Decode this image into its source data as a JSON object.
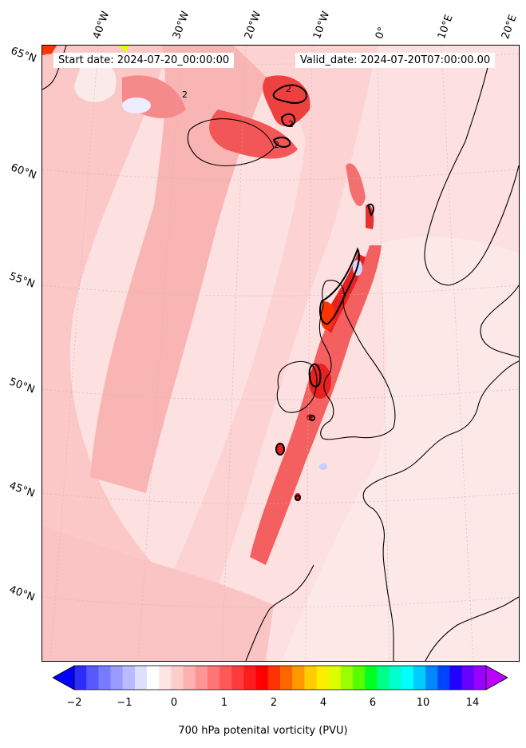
{
  "header": {
    "start_date": "Start date: 2024-07-20_00:00:00",
    "valid_date": "Valid_date: 2024-07-20T07:00:00.00"
  },
  "lat_labels": [
    "65°N",
    "60°N",
    "55°N",
    "50°N",
    "45°N",
    "40°N"
  ],
  "lon_labels": [
    "40°W",
    "30°W",
    "20°W",
    "10°W",
    "0°",
    "10°E",
    "20°E"
  ],
  "contour_labels": [
    "2",
    "2",
    "2",
    "2"
  ],
  "colorbar": {
    "label": "700 hPa potenital vorticity (PVU)",
    "ticks": [
      "−2",
      "−1",
      "0",
      "1",
      "2",
      "4",
      "6",
      "10",
      "14"
    ],
    "colors": [
      "#0000ff",
      "#2c2cff",
      "#5858ff",
      "#7a7aff",
      "#9a9aff",
      "#babaff",
      "#dedeff",
      "#ffffff",
      "#ffe4e4",
      "#ffcccc",
      "#ffb0b0",
      "#ff9494",
      "#ff7676",
      "#ff5858",
      "#ff3a3a",
      "#ff1c1c",
      "#ff0000",
      "#ff3300",
      "#ff6600",
      "#ff9900",
      "#ffcc00",
      "#ffee00",
      "#ddff00",
      "#99ff00",
      "#55ff00",
      "#00ff22",
      "#00ff88",
      "#00ffcc",
      "#00ffff",
      "#00ccff",
      "#0088ff",
      "#0044ff",
      "#2200ff",
      "#6600ff",
      "#9900ff",
      "#bb00ff"
    ]
  }
}
